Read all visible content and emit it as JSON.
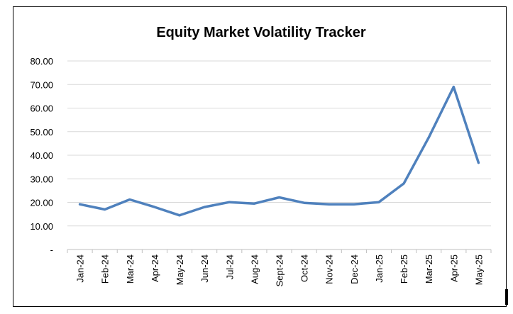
{
  "chart_data": {
    "type": "line",
    "title": "Equity Market Volatility Tracker",
    "xlabel": "",
    "ylabel": "",
    "ylim": [
      0,
      80
    ],
    "y_ticks": [
      0,
      10,
      20,
      30,
      40,
      50,
      60,
      70,
      80
    ],
    "y_tick_labels": [
      "-",
      "10.00",
      "20.00",
      "30.00",
      "40.00",
      "50.00",
      "60.00",
      "70.00",
      "80.00"
    ],
    "grid": true,
    "legend": "none",
    "categories": [
      "Jan-24",
      "Feb-24",
      "Mar-24",
      "Apr-24",
      "May-24",
      "Jun-24",
      "Jul-24",
      "Aug-24",
      "Sept-24",
      "Oct-24",
      "Nov-24",
      "Dec-24",
      "Jan-25",
      "Feb-25",
      "Mar-25",
      "Apr-25",
      "May-25"
    ],
    "series": [
      {
        "color": "#4f81bd",
        "values": [
          19.2,
          17.0,
          21.2,
          18.0,
          14.5,
          18.0,
          20.1,
          19.5,
          22.1,
          19.8,
          19.2,
          19.2,
          20.1,
          28.0,
          47.5,
          69.0,
          36.8
        ]
      }
    ],
    "colors": {
      "line": "#4f81bd",
      "grid": "#d9d9d9",
      "axis": "#bfbfbf",
      "text": "#000000"
    }
  }
}
